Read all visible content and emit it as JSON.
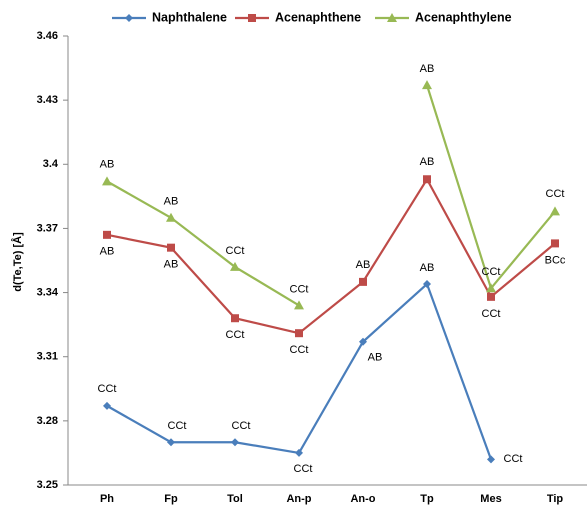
{
  "chart_data": {
    "type": "line",
    "y_label": "d(Te,Te) [Å]",
    "categories": [
      "Ph",
      "Fp",
      "Tol",
      "An-p",
      "An-o",
      "Tp",
      "Mes",
      "Tip"
    ],
    "series": [
      {
        "name": "Naphthalene",
        "color": "#4a7ebb",
        "marker": "diamond",
        "values": [
          3.287,
          3.27,
          3.27,
          3.265,
          3.317,
          3.344,
          3.262,
          null
        ],
        "annotations": [
          "CCt",
          "CCt",
          "CCt",
          "CCt",
          "AB",
          "AB",
          "CCt",
          null
        ]
      },
      {
        "name": "Acenaphthene",
        "color": "#be4b48",
        "marker": "square",
        "values": [
          3.367,
          3.361,
          3.328,
          3.321,
          3.345,
          3.393,
          3.338,
          3.363
        ],
        "annotations": [
          "AB",
          "AB",
          "CCt",
          "CCt",
          "AB",
          "AB",
          "CCt",
          "BCc"
        ]
      },
      {
        "name": "Acenaphthylene",
        "color": "#98b954",
        "marker": "triangle",
        "values": [
          3.392,
          3.375,
          3.352,
          3.334,
          null,
          3.437,
          3.342,
          3.378
        ],
        "annotations": [
          "AB",
          "AB",
          "CCt",
          "CCt",
          null,
          "AB",
          "CCt",
          "CCt"
        ]
      }
    ],
    "ylim": [
      3.25,
      3.46
    ],
    "yticks": [
      3.25,
      3.28,
      3.31,
      3.34,
      3.37,
      3.4,
      3.43,
      3.46
    ],
    "grid": false
  }
}
